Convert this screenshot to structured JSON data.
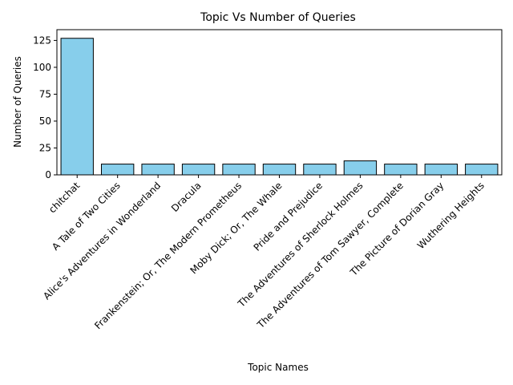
{
  "chart_data": {
    "type": "bar",
    "title": "Topic Vs Number of Queries",
    "xlabel": "Topic Names",
    "ylabel": "Number of Queries",
    "categories": [
      "chitchat",
      "A Tale of Two Cities",
      "Alice's Adventures in Wonderland",
      "Dracula",
      "Frankenstein; Or, The Modern Prometheus",
      "Moby Dick; Or, The Whale",
      "Pride and Prejudice",
      "The Adventures of Sherlock Holmes",
      "The Adventures of Tom Sawyer, Complete",
      "The Picture of Dorian Gray",
      "Wuthering Heights"
    ],
    "values": [
      127,
      10,
      10,
      10,
      10,
      10,
      10,
      13,
      10,
      10,
      10
    ],
    "ylim": [
      0,
      135
    ],
    "yticks": [
      0,
      25,
      50,
      75,
      100,
      125
    ],
    "bar_color": "#87ceeb",
    "edge_color": "#000000",
    "grid": false,
    "legend": "none"
  }
}
